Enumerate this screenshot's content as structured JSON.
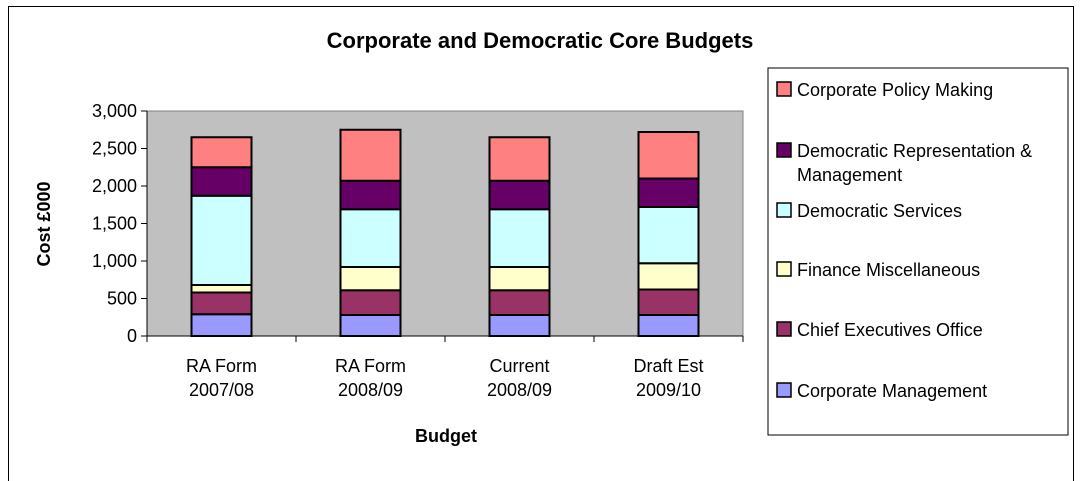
{
  "chart_data": {
    "type": "bar",
    "stacked": true,
    "title": "Corporate and Democratic Core Budgets",
    "xlabel": "Budget",
    "ylabel": "Cost £000",
    "ylim": [
      0,
      3000
    ],
    "yticks": [
      "0",
      "500",
      "1,000",
      "1,500",
      "2,000",
      "2,500",
      "3,000"
    ],
    "categories": [
      [
        "RA Form",
        "2007/08"
      ],
      [
        "RA Form",
        "2008/09"
      ],
      [
        "Current",
        "2008/09"
      ],
      [
        "Draft Est",
        "2009/10"
      ]
    ],
    "grid": false,
    "legend_position": "right",
    "series": [
      {
        "name": "Corporate Management",
        "color": "#9999ff",
        "values": [
          290,
          280,
          280,
          280
        ]
      },
      {
        "name": "Chief Executives Office",
        "color": "#993366",
        "values": [
          290,
          330,
          330,
          340
        ]
      },
      {
        "name": "Finance Miscellaneous",
        "color": "#ffffcc",
        "values": [
          100,
          310,
          310,
          350
        ]
      },
      {
        "name": "Democratic Services",
        "color": "#ccffff",
        "values": [
          1190,
          770,
          770,
          750
        ]
      },
      {
        "name": "Democratic Representation & Management",
        "color": "#660066",
        "values": [
          380,
          380,
          380,
          380
        ]
      },
      {
        "name": "Corporate Policy Making",
        "color": "#ff8080",
        "values": [
          400,
          680,
          580,
          620
        ]
      }
    ],
    "plot_background": "#c0c0c0"
  }
}
